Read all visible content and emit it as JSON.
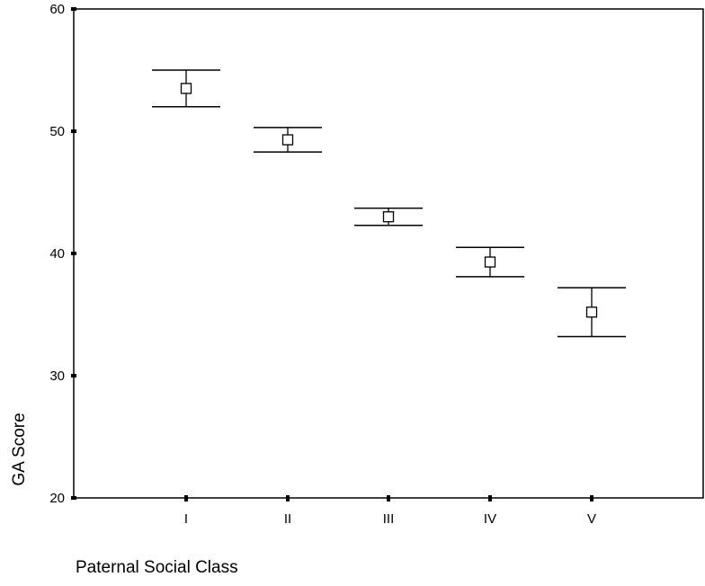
{
  "chart_data": {
    "type": "scatter",
    "xlabel": "Paternal Social Class",
    "ylabel": "GA Score",
    "ylim": [
      20,
      60
    ],
    "yticks": [
      20,
      30,
      40,
      50,
      60
    ],
    "categories": [
      "I",
      "II",
      "III",
      "IV",
      "V"
    ],
    "series": [
      {
        "means": [
          53.5,
          49.3,
          43.0,
          39.3,
          35.2
        ],
        "lower": [
          52.0,
          48.3,
          42.3,
          38.1,
          33.2
        ],
        "upper": [
          55.0,
          50.3,
          43.7,
          40.5,
          37.2
        ]
      }
    ],
    "marker": "open-square",
    "error_bars": true,
    "grid": false,
    "colors": {
      "line": "#000000",
      "background": "#ffffff"
    }
  }
}
